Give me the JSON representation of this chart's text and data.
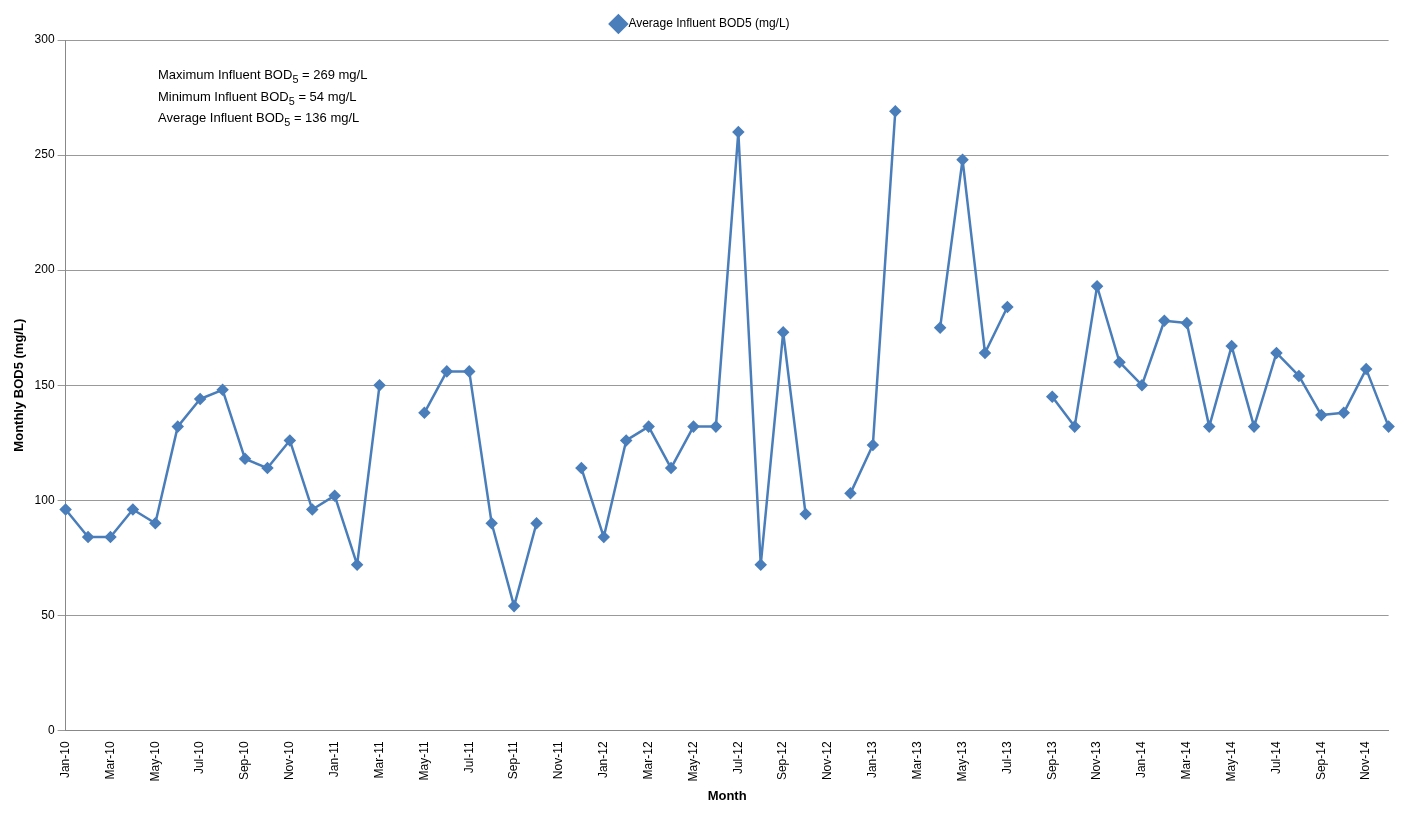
{
  "chart_data": {
    "type": "line",
    "xlabel": "Month",
    "ylabel": "Monthly BOD5 (mg/L)",
    "categories": [
      "Jan-10",
      null,
      "Mar-10",
      null,
      "May-10",
      null,
      "Jul-10",
      null,
      "Sep-10",
      null,
      "Nov-10",
      null,
      "Jan-11",
      null,
      "Mar-11",
      null,
      "May-11",
      null,
      "Jul-11",
      null,
      "Sep-11",
      null,
      "Nov-11",
      null,
      "Jan-12",
      null,
      "Mar-12",
      null,
      "May-12",
      null,
      "Jul-12",
      null,
      "Sep-12",
      null,
      "Nov-12",
      null,
      "Jan-13",
      null,
      "Mar-13",
      null,
      "May-13",
      null,
      "Jul-13",
      null,
      "Sep-13",
      null,
      "Nov-13",
      null,
      "Jan-14",
      null,
      "Mar-14",
      null,
      "May-14",
      null,
      "Jul-14",
      null,
      "Sep-14",
      null,
      "Nov-14",
      null
    ],
    "series": [
      {
        "name": "Average Influent BOD5 (mg/L)",
        "color": "#4a7ebb",
        "values": [
          96,
          84,
          84,
          96,
          90,
          132,
          144,
          148,
          118,
          114,
          126,
          96,
          102,
          72,
          150,
          null,
          138,
          156,
          156,
          90,
          54,
          90,
          null,
          114,
          84,
          126,
          132,
          114,
          132,
          132,
          260,
          72,
          173,
          94,
          null,
          103,
          124,
          269,
          null,
          175,
          248,
          164,
          184,
          null,
          145,
          132,
          193,
          160,
          150,
          178,
          177,
          132,
          167,
          132,
          164,
          154,
          137,
          138,
          157,
          132
        ]
      }
    ],
    "ylim": [
      0,
      300
    ],
    "yticks": [
      0,
      50,
      100,
      150,
      200,
      250,
      300
    ],
    "grid": "y",
    "legend": "top",
    "marker": "diamond",
    "line_style": "solid",
    "annotations": [
      "Maximum Influent BOD$_{5}$ = 269 mg/L",
      "Minimum Influent BOD$_{5}$ = 54 mg/L",
      "Average Influent BOD$_{5}$ = 136 mg/L"
    ]
  }
}
